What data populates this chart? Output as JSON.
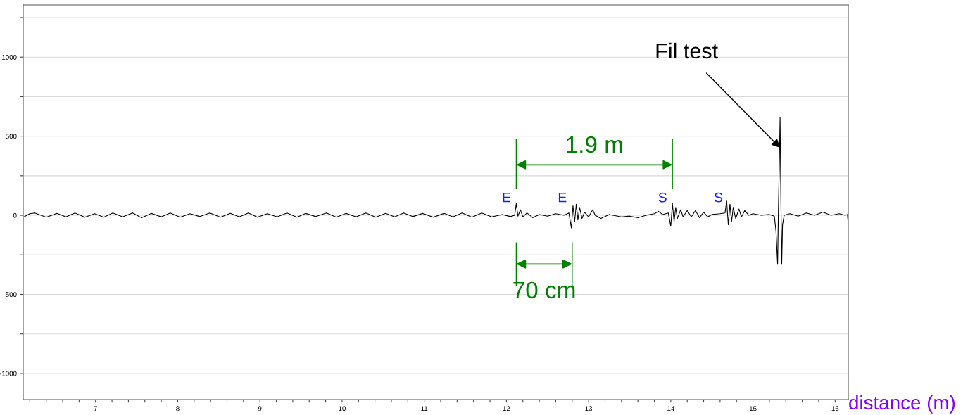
{
  "chart_data": {
    "type": "line",
    "xlabel": "distance (m)",
    "x": [
      6.13,
      6.2,
      6.26,
      6.4,
      6.53,
      6.64,
      6.75,
      6.87,
      6.99,
      7.1,
      7.21,
      7.33,
      7.45,
      7.56,
      7.68,
      7.8,
      7.91,
      8.03,
      8.15,
      8.27,
      8.39,
      8.52,
      8.64,
      8.75,
      8.86,
      8.97,
      9.09,
      9.21,
      9.33,
      9.45,
      9.56,
      9.68,
      9.81,
      9.93,
      10.05,
      10.17,
      10.29,
      10.41,
      10.53,
      10.64,
      10.75,
      10.86,
      10.98,
      11.11,
      11.24,
      11.35,
      11.46,
      11.58,
      11.7,
      11.82,
      11.95,
      12.05,
      12.1,
      12.12,
      12.14,
      12.17,
      12.2,
      12.25,
      12.32,
      12.4,
      12.5,
      12.6,
      12.7,
      12.76,
      12.79,
      12.81,
      12.83,
      12.85,
      12.87,
      12.89,
      12.92,
      12.95,
      13.0,
      13.05,
      13.08,
      13.15,
      13.25,
      13.4,
      13.5,
      13.6,
      13.7,
      13.8,
      13.85,
      13.9,
      13.97,
      14.0,
      14.02,
      14.04,
      14.06,
      14.08,
      14.12,
      14.15,
      14.2,
      14.25,
      14.3,
      14.35,
      14.4,
      14.45,
      14.5,
      14.6,
      14.66,
      14.68,
      14.7,
      14.72,
      14.74,
      14.76,
      14.79,
      14.83,
      14.86,
      14.9,
      14.95,
      15.0,
      15.1,
      15.2,
      15.26,
      15.28,
      15.3,
      15.31,
      15.32,
      15.33,
      15.34,
      15.35,
      15.36,
      15.38,
      15.45,
      15.55,
      15.65,
      15.75,
      15.85,
      15.95,
      16.05,
      16.12,
      16.15,
      16.16
    ],
    "series": [
      {
        "color": "#000000",
        "values": [
          -10,
          10,
          15,
          -12,
          12,
          -10,
          15,
          -12,
          10,
          -12,
          15,
          -10,
          15,
          -15,
          12,
          -10,
          15,
          -12,
          10,
          -8,
          15,
          -12,
          12,
          -10,
          15,
          -12,
          10,
          -10,
          15,
          -12,
          12,
          -8,
          15,
          -12,
          12,
          -10,
          15,
          -12,
          12,
          -10,
          15,
          -8,
          12,
          -12,
          12,
          -10,
          15,
          -12,
          15,
          -10,
          5,
          -8,
          0,
          75,
          -5,
          35,
          -10,
          15,
          -15,
          5,
          -5,
          10,
          0,
          15,
          -80,
          60,
          -40,
          70,
          -30,
          50,
          -20,
          20,
          -10,
          35,
          0,
          -20,
          5,
          -10,
          -5,
          -15,
          0,
          10,
          25,
          5,
          15,
          -70,
          75,
          -40,
          50,
          -20,
          35,
          -10,
          30,
          -10,
          30,
          -15,
          20,
          -10,
          5,
          10,
          15,
          90,
          -60,
          70,
          -40,
          50,
          -20,
          40,
          -10,
          30,
          0,
          10,
          0,
          5,
          -5,
          -100,
          -310,
          50,
          300,
          618,
          100,
          -310,
          -60,
          0,
          10,
          -5,
          15,
          0,
          20,
          0,
          10,
          0,
          5,
          -60
        ]
      }
    ],
    "xlim": [
      6.12,
      16.16
    ],
    "xticks": [
      {
        "value": 6.2,
        "label": null
      },
      {
        "value": 6.4,
        "label": null
      },
      {
        "value": 6.6,
        "label": null
      },
      {
        "value": 6.8,
        "label": null
      },
      7,
      {
        "value": 7.2,
        "label": null
      },
      {
        "value": 7.4,
        "label": null
      },
      {
        "value": 7.6,
        "label": null
      },
      {
        "value": 7.8,
        "label": null
      },
      8,
      {
        "value": 8.2,
        "label": null
      },
      {
        "value": 8.4,
        "label": null
      },
      {
        "value": 8.6,
        "label": null
      },
      {
        "value": 8.8,
        "label": null
      },
      9,
      {
        "value": 9.2,
        "label": null
      },
      {
        "value": 9.4,
        "label": null
      },
      {
        "value": 9.6,
        "label": null
      },
      {
        "value": 9.8,
        "label": null
      },
      10,
      {
        "value": 10.2,
        "label": null
      },
      {
        "value": 10.4,
        "label": null
      },
      {
        "value": 10.6,
        "label": null
      },
      {
        "value": 10.8,
        "label": null
      },
      11,
      {
        "value": 11.2,
        "label": null
      },
      {
        "value": 11.4,
        "label": null
      },
      {
        "value": 11.6,
        "label": null
      },
      {
        "value": 11.8,
        "label": null
      },
      12,
      {
        "value": 12.2,
        "label": null
      },
      {
        "value": 12.4,
        "label": null
      },
      {
        "value": 12.6,
        "label": null
      },
      {
        "value": 12.8,
        "label": null
      },
      13,
      {
        "value": 13.2,
        "label": null
      },
      {
        "value": 13.4,
        "label": null
      },
      {
        "value": 13.6,
        "label": null
      },
      {
        "value": 13.8,
        "label": null
      },
      14,
      {
        "value": 14.2,
        "label": null
      },
      {
        "value": 14.4,
        "label": null
      },
      {
        "value": 14.6,
        "label": null
      },
      {
        "value": 14.8,
        "label": null
      },
      15,
      {
        "value": 15.2,
        "label": null
      },
      {
        "value": 15.4,
        "label": null
      },
      {
        "value": 15.6,
        "label": null
      },
      {
        "value": 15.8,
        "label": null
      },
      16
    ],
    "ylim": [
      -1165,
      1330
    ],
    "yticks": [
      -1000,
      {
        "value": -750,
        "label": null
      },
      -500,
      {
        "value": -250,
        "label": null
      },
      0,
      {
        "value": 250,
        "label": null
      },
      500,
      {
        "value": 750,
        "label": null
      },
      1000,
      {
        "value": 1250,
        "label": null
      }
    ],
    "grid": "y",
    "annotations": [
      {
        "text": "Fil test",
        "x": 15.33,
        "y": 427
      },
      {
        "text": "E",
        "x": 12.12,
        "y": 70
      },
      {
        "text": "E",
        "x": 12.8,
        "y": 70
      },
      {
        "text": "S",
        "x": 14.02,
        "y": 70
      },
      {
        "text": "S",
        "x": 14.7,
        "y": 70
      },
      "1.9 m",
      "70 cm"
    ]
  }
}
